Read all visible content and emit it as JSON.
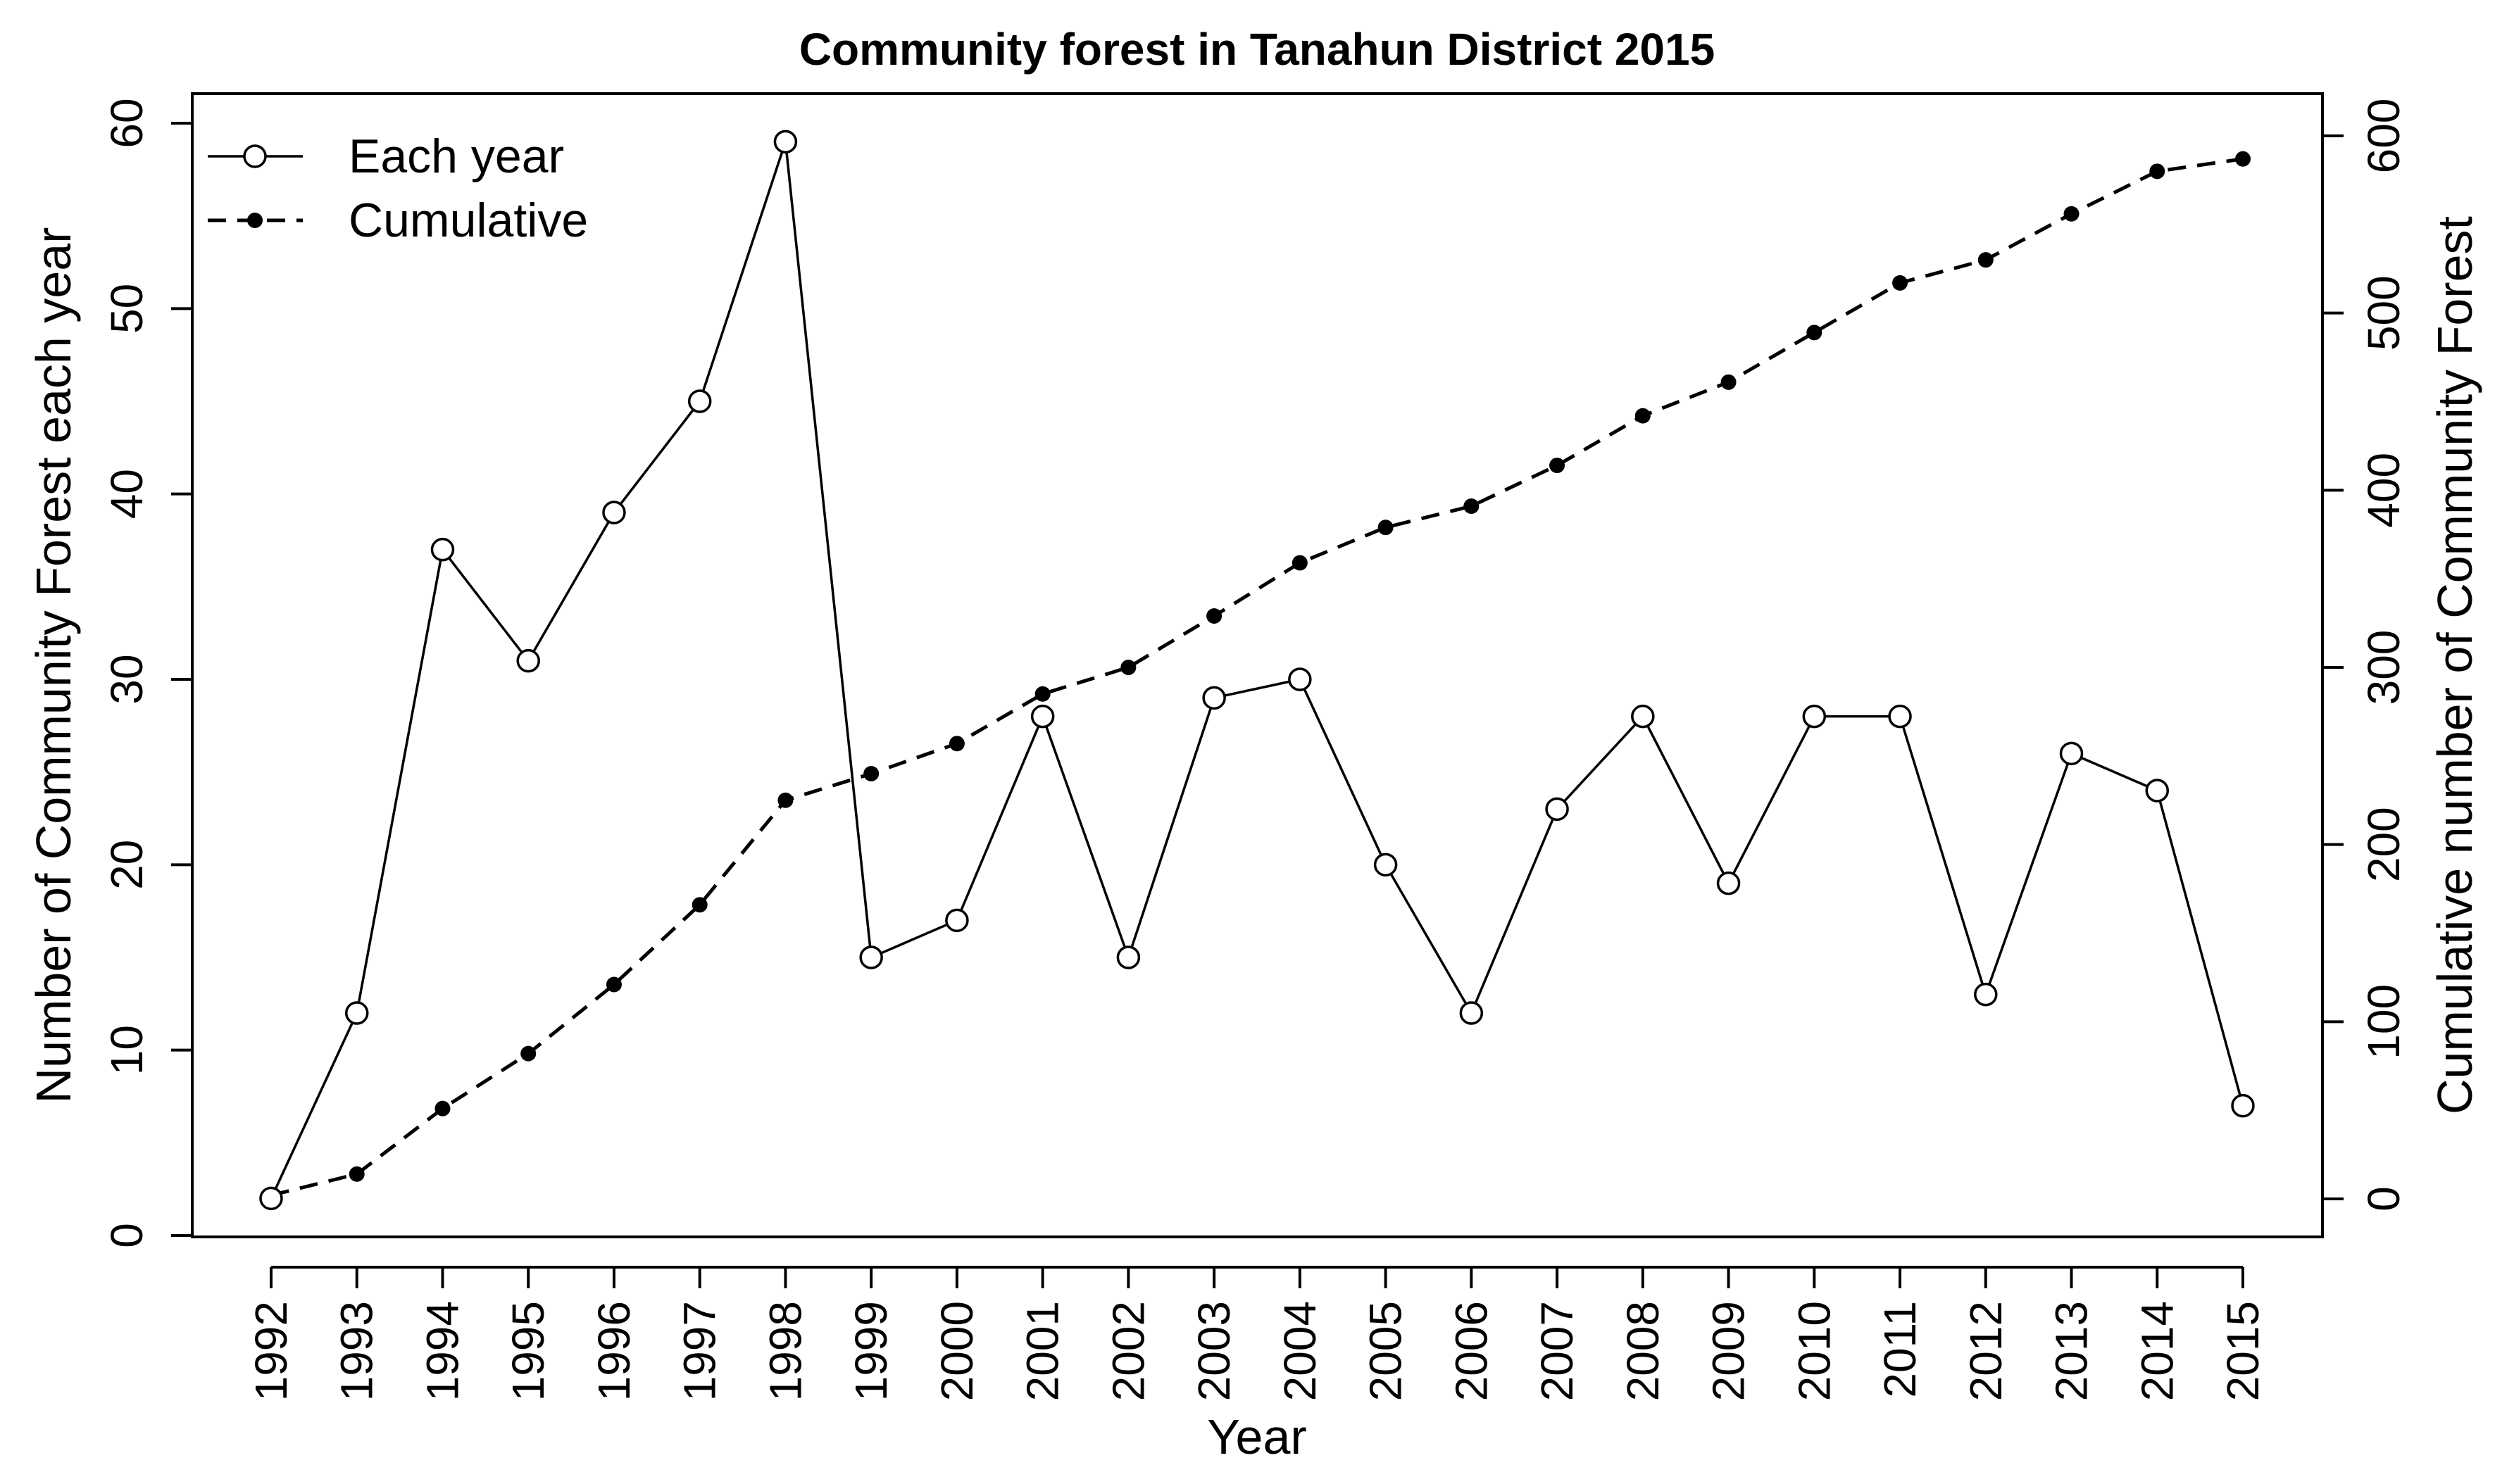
{
  "chart_data": {
    "type": "line",
    "title": "Community forest in Tanahun District 2015",
    "xlabel": "Year",
    "ylabel": "Number of Community Forest each year",
    "y2label": "Cumulative number of Community Forest",
    "categories": [
      "1992",
      "1993",
      "1994",
      "1995",
      "1996",
      "1997",
      "1998",
      "1999",
      "2000",
      "2001",
      "2002",
      "2003",
      "2004",
      "2005",
      "2006",
      "2007",
      "2008",
      "2009",
      "2010",
      "2011",
      "2012",
      "2013",
      "2014",
      "2015"
    ],
    "ylim": [
      0,
      60
    ],
    "yticks": [
      "0",
      "10",
      "20",
      "30",
      "40",
      "50",
      "60"
    ],
    "y2lim": [
      0,
      600
    ],
    "y2ticks": [
      "0",
      "100",
      "200",
      "300",
      "400",
      "500",
      "600"
    ],
    "legend_position": "top-left",
    "series": [
      {
        "name": "Each year",
        "axis": "left",
        "style": "solid line, open circles",
        "values": [
          2,
          12,
          37,
          31,
          39,
          45,
          59,
          15,
          17,
          28,
          15,
          29,
          30,
          20,
          12,
          23,
          28,
          19,
          28,
          28,
          13,
          26,
          24,
          7
        ]
      },
      {
        "name": "Cumulative",
        "axis": "right",
        "style": "dashed line, filled dots",
        "values": [
          2,
          14,
          51,
          82,
          121,
          166,
          225,
          240,
          257,
          285,
          300,
          329,
          359,
          379,
          391,
          414,
          442,
          461,
          489,
          517,
          530,
          556,
          580,
          587
        ]
      }
    ]
  },
  "colors": {
    "line": "#000000",
    "background": "#ffffff"
  }
}
